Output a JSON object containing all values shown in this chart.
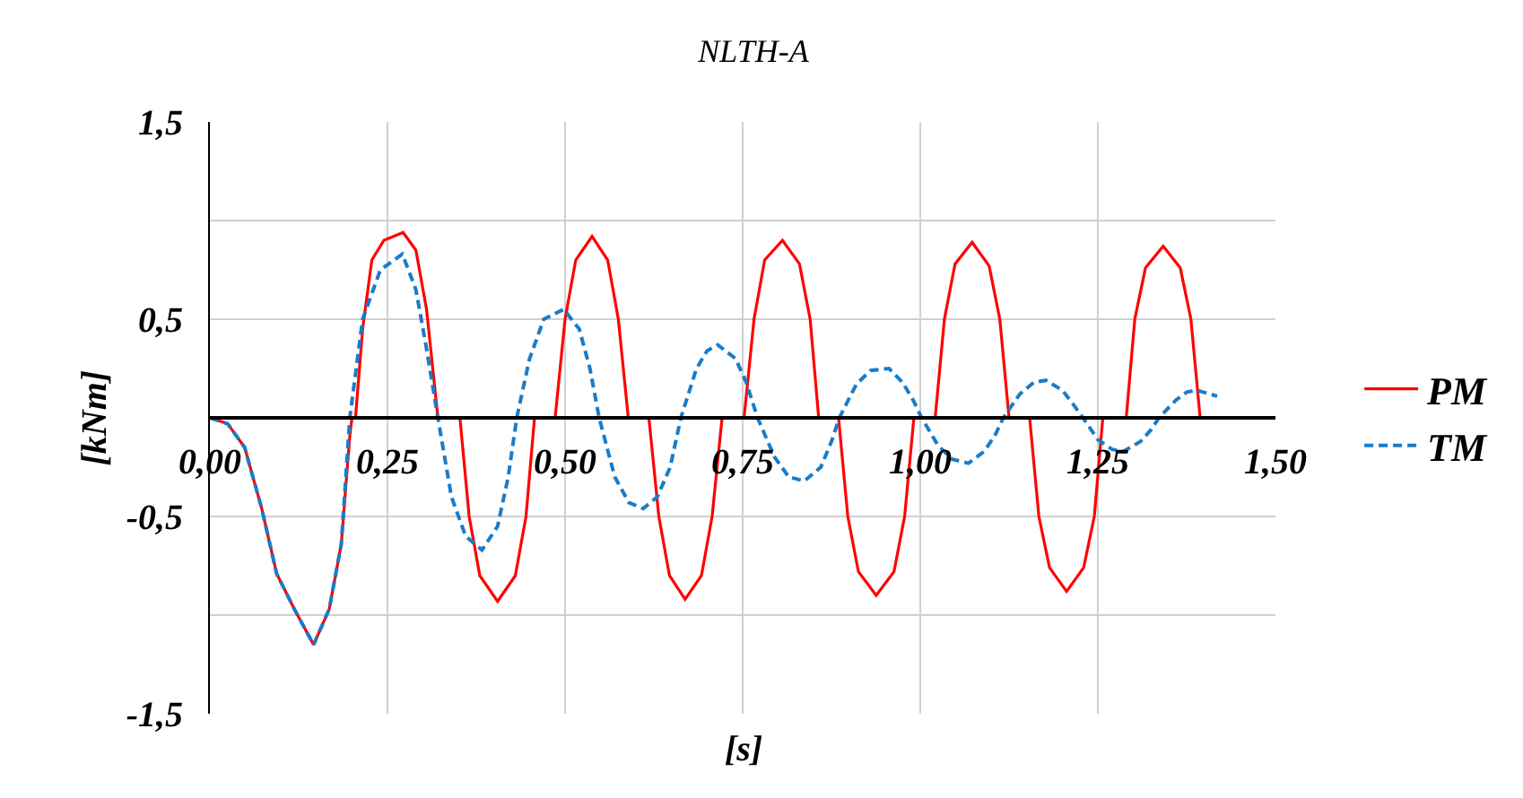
{
  "chart_data": {
    "type": "line",
    "title": "NLTH-A",
    "xlabel": "[s]",
    "ylabel": "[kNm]",
    "xlim": [
      0,
      1.5
    ],
    "xticks": [
      {
        "value": 0,
        "label": "0,00"
      },
      {
        "value": 0.25,
        "label": "0,25"
      },
      {
        "value": 0.5,
        "label": "0,50"
      },
      {
        "value": 0.75,
        "label": "0,75"
      },
      {
        "value": 1.0,
        "label": "1,00"
      },
      {
        "value": 1.25,
        "label": "1,25"
      },
      {
        "value": 1.5,
        "label": "1,50"
      }
    ],
    "ylim": [
      -1.5,
      1.5
    ],
    "yticks": [
      {
        "value": -1.5,
        "label": "-1,5"
      },
      {
        "value": -1.0,
        "label": null
      },
      {
        "value": -0.5,
        "label": "-0,5"
      },
      {
        "value": 0,
        "label": null
      },
      {
        "value": 0.5,
        "label": "0,5"
      },
      {
        "value": 1.0,
        "label": null
      },
      {
        "value": 1.5,
        "label": "1,5"
      }
    ],
    "grid": true,
    "legend": "right",
    "marker": "none",
    "series": [
      {
        "name": "PM",
        "color": "#ff0000",
        "line_style": "solid",
        "x": [
          0,
          0.025,
          0.049,
          0.073,
          0.094,
          0.119,
          0.146,
          0.168,
          0.185,
          0.197,
          0.2,
          0.205,
          0.215,
          0.228,
          0.245,
          0.272,
          0.29,
          0.305,
          0.321,
          0.352,
          0.365,
          0.38,
          0.405,
          0.43,
          0.445,
          0.457,
          0.486,
          0.5,
          0.515,
          0.538,
          0.56,
          0.575,
          0.589,
          0.618,
          0.632,
          0.647,
          0.669,
          0.692,
          0.707,
          0.721,
          0.752,
          0.766,
          0.781,
          0.806,
          0.83,
          0.845,
          0.857,
          0.885,
          0.898,
          0.913,
          0.938,
          0.963,
          0.978,
          0.991,
          1.021,
          1.034,
          1.049,
          1.073,
          1.097,
          1.112,
          1.125,
          1.154,
          1.167,
          1.182,
          1.206,
          1.23,
          1.245,
          1.257,
          1.29,
          1.302,
          1.317,
          1.342,
          1.366,
          1.381,
          1.394
        ],
        "values": [
          0,
          -0.03,
          -0.15,
          -0.46,
          -0.79,
          -0.97,
          -1.15,
          -0.97,
          -0.64,
          -0.09,
          0,
          0,
          0.45,
          0.8,
          0.9,
          0.94,
          0.85,
          0.55,
          0,
          0,
          -0.5,
          -0.8,
          -0.93,
          -0.8,
          -0.5,
          0,
          0,
          0.5,
          0.8,
          0.92,
          0.8,
          0.5,
          0,
          0,
          -0.5,
          -0.8,
          -0.92,
          -0.8,
          -0.5,
          0,
          0,
          0.5,
          0.8,
          0.9,
          0.78,
          0.5,
          0,
          0,
          -0.5,
          -0.78,
          -0.9,
          -0.78,
          -0.5,
          0,
          0,
          0.5,
          0.78,
          0.89,
          0.77,
          0.5,
          0,
          0,
          -0.5,
          -0.76,
          -0.88,
          -0.76,
          -0.5,
          0,
          0,
          0.5,
          0.76,
          0.87,
          0.76,
          0.5,
          0
        ]
      },
      {
        "name": "TM",
        "color": "#1a7cc8",
        "line_style": "dashed",
        "x": [
          0,
          0.025,
          0.049,
          0.073,
          0.094,
          0.119,
          0.146,
          0.168,
          0.185,
          0.197,
          0.215,
          0.24,
          0.271,
          0.29,
          0.305,
          0.321,
          0.34,
          0.36,
          0.383,
          0.405,
          0.42,
          0.432,
          0.45,
          0.47,
          0.498,
          0.52,
          0.535,
          0.548,
          0.57,
          0.59,
          0.61,
          0.63,
          0.648,
          0.663,
          0.685,
          0.7,
          0.715,
          0.74,
          0.755,
          0.771,
          0.795,
          0.815,
          0.837,
          0.86,
          0.875,
          0.886,
          0.91,
          0.93,
          0.956,
          0.975,
          0.99,
          1.002,
          1.025,
          1.045,
          1.068,
          1.09,
          1.105,
          1.117,
          1.14,
          1.16,
          1.177,
          1.2,
          1.215,
          1.229,
          1.25,
          1.27,
          1.286,
          1.31,
          1.325,
          1.336,
          1.36,
          1.375,
          1.389,
          1.418
        ],
        "values": [
          0,
          -0.03,
          -0.15,
          -0.46,
          -0.79,
          -0.97,
          -1.15,
          -0.97,
          -0.64,
          0,
          0.5,
          0.75,
          0.83,
          0.65,
          0.35,
          0,
          -0.4,
          -0.6,
          -0.67,
          -0.55,
          -0.3,
          0,
          0.3,
          0.5,
          0.55,
          0.45,
          0.25,
          0,
          -0.3,
          -0.43,
          -0.46,
          -0.4,
          -0.25,
          0,
          0.25,
          0.34,
          0.37,
          0.3,
          0.18,
          0,
          -0.2,
          -0.3,
          -0.32,
          -0.25,
          -0.12,
          0,
          0.17,
          0.24,
          0.25,
          0.18,
          0.09,
          0,
          -0.14,
          -0.21,
          -0.23,
          -0.17,
          -0.09,
          0,
          0.12,
          0.18,
          0.19,
          0.14,
          0.07,
          0,
          -0.11,
          -0.16,
          -0.17,
          -0.12,
          -0.06,
          0,
          0.09,
          0.13,
          0.14,
          0.11
        ]
      }
    ]
  }
}
